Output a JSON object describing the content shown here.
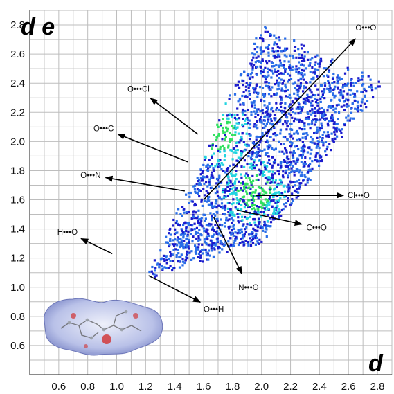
{
  "chart_data": {
    "type": "heatmap",
    "title": "",
    "xlabel": "d",
    "ylabel": "d e",
    "xlim": [
      0.4,
      2.9
    ],
    "ylim": [
      0.4,
      2.9
    ],
    "x_ticks": [
      "0.6",
      "0.8",
      "1.0",
      "1.2",
      "1.4",
      "1.6",
      "1.8",
      "2.0",
      "2.2",
      "2.4",
      "2.6",
      "2.8"
    ],
    "y_ticks": [
      "0.6",
      "0.8",
      "1.0",
      "1.2",
      "1.4",
      "1.6",
      "1.8",
      "2.0",
      "2.2",
      "2.4",
      "2.6",
      "2.8"
    ],
    "grid": true,
    "colormap": [
      "#1a1acc",
      "#2a6ee8",
      "#22d4e0",
      "#30e060"
    ],
    "fingerprint_region": {
      "corners": [
        [
          1.2,
          1.05
        ],
        [
          2.0,
          2.8
        ],
        [
          2.85,
          2.4
        ],
        [
          2.0,
          1.3
        ]
      ],
      "hotspots": [
        [
          1.7,
          2.05
        ],
        [
          1.95,
          1.65
        ]
      ]
    },
    "contacts": [
      {
        "label": "O•••O",
        "point": [
          1.6,
          1.6
        ],
        "label_at": [
          2.72,
          2.78
        ]
      },
      {
        "label": "O•••Cl",
        "point": [
          1.56,
          2.05
        ],
        "label_at": [
          1.15,
          2.36
        ]
      },
      {
        "label": "O•••C",
        "point": [
          1.49,
          1.86
        ],
        "label_at": [
          0.91,
          2.09
        ]
      },
      {
        "label": "O•••N",
        "point": [
          1.47,
          1.66
        ],
        "label_at": [
          0.82,
          1.77
        ]
      },
      {
        "label": "H•••O",
        "point": [
          0.97,
          1.23
        ],
        "label_at": [
          0.66,
          1.38
        ]
      },
      {
        "label": "O•••H",
        "point": [
          1.22,
          1.08
        ],
        "label_at": [
          1.67,
          0.85
        ]
      },
      {
        "label": "N•••O",
        "point": [
          1.67,
          1.48
        ],
        "label_at": [
          1.91,
          1.0
        ]
      },
      {
        "label": "C•••O",
        "point": [
          1.83,
          1.53
        ],
        "label_at": [
          2.38,
          1.41
        ]
      },
      {
        "label": "Cl•••O",
        "point": [
          1.96,
          1.63
        ],
        "label_at": [
          2.67,
          1.63
        ]
      }
    ]
  },
  "surface_inset": {
    "icon": "hirshfeld-surface",
    "colors": [
      "#8f9ad6",
      "#e8ecf8",
      "#d23030"
    ]
  }
}
